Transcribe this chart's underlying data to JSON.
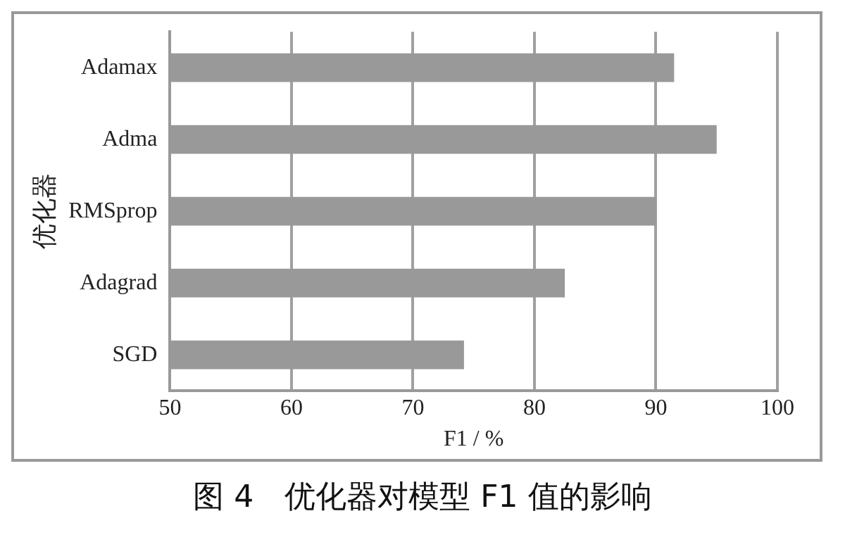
{
  "chart_data": {
    "type": "bar",
    "orientation": "horizontal",
    "title": "图 4　优化器对模型 F1 值的影响",
    "xlabel": "F1 / %",
    "ylabel": "优化器",
    "categories": [
      "Adamax",
      "Adma",
      "RMSprop",
      "Adagrad",
      "SGD"
    ],
    "values": [
      91.5,
      95.0,
      90.0,
      82.5,
      74.2
    ],
    "color": "#999999",
    "xlim": [
      50,
      100
    ],
    "xticks": [
      50,
      60,
      70,
      80,
      90,
      100
    ],
    "grid": "x"
  }
}
